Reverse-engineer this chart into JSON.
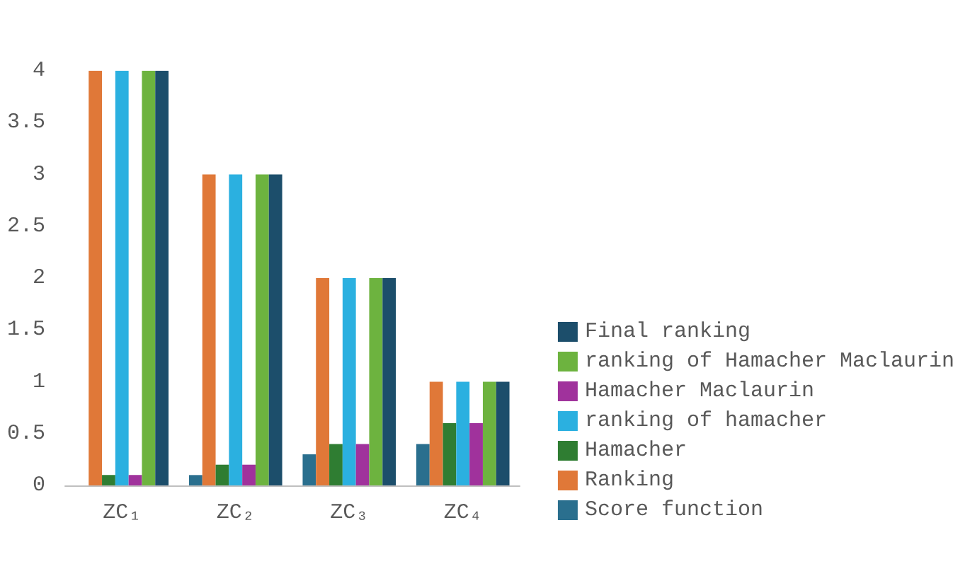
{
  "chart_data": {
    "type": "bar",
    "categories": [
      "ZC₁",
      "ZC₂",
      "ZC₃",
      "ZC₄"
    ],
    "series": [
      {
        "name": "Score function",
        "color": "#2a6f8e",
        "values": [
          0,
          0.1,
          0.3,
          0.4
        ]
      },
      {
        "name": "Ranking",
        "color": "#e07838",
        "values": [
          4,
          3,
          2,
          1
        ]
      },
      {
        "name": "Hamacher",
        "color": "#2f7d32",
        "values": [
          0.1,
          0.2,
          0.4,
          0.6
        ]
      },
      {
        "name": "ranking of hamacher",
        "color": "#2bb0e0",
        "values": [
          4,
          3,
          2,
          1
        ]
      },
      {
        "name": "Hamacher Maclaurin",
        "color": "#a0329c",
        "values": [
          0.1,
          0.2,
          0.4,
          0.6
        ]
      },
      {
        "name": "ranking of Hamacher Maclaurin",
        "color": "#6db33f",
        "values": [
          4,
          3,
          2,
          1
        ]
      },
      {
        "name": "Final ranking",
        "color": "#1c4e6b",
        "values": [
          4,
          3,
          2,
          1
        ]
      }
    ],
    "ylim": [
      0,
      4
    ],
    "yticks": [
      0,
      0.5,
      1,
      1.5,
      2,
      2.5,
      3,
      3.5,
      4
    ],
    "legend": "right"
  }
}
